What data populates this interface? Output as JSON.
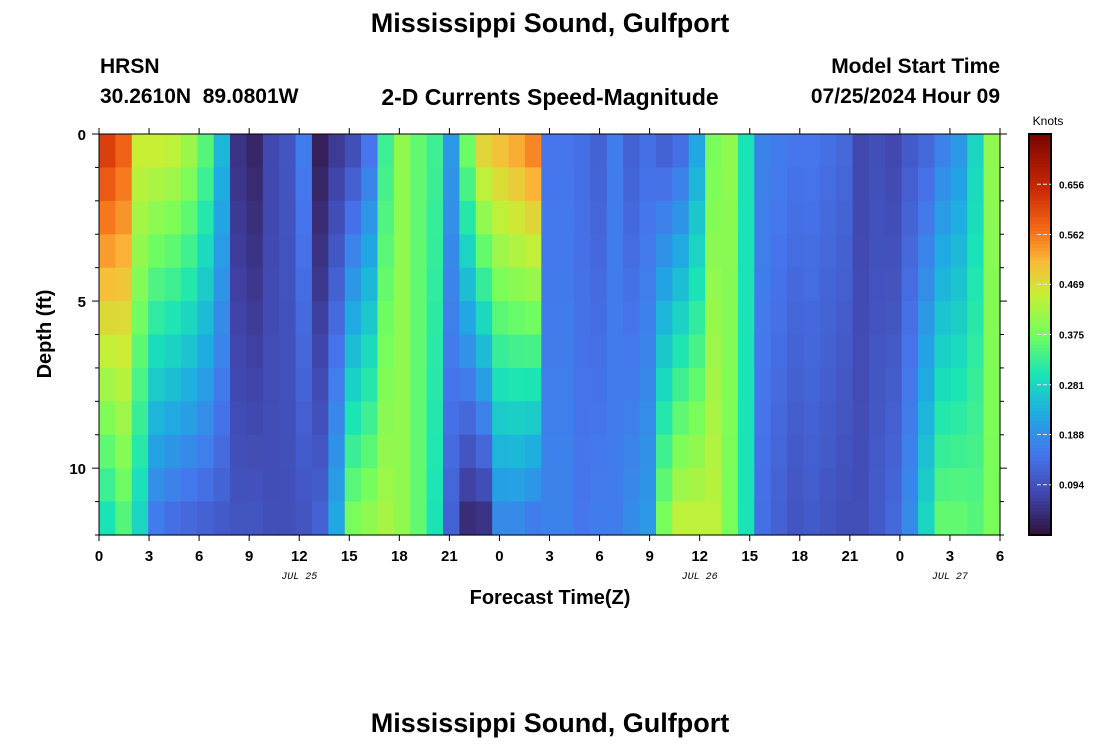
{
  "page": {
    "title_top": "Mississippi Sound, Gulfport",
    "title_bottom": "Mississippi Sound, Gulfport",
    "station_id": "HRSN",
    "station_coords": "30.2610N  89.0801W",
    "product_title": "2-D Currents Speed-Magnitude",
    "model_label": "Model Start Time",
    "model_start": "07/25/2024 Hour 09"
  },
  "chart_data": {
    "type": "heatmap",
    "title": "2-D Currents Speed-Magnitude",
    "xlabel": "Forecast Time(Z)",
    "ylabel": "Depth (ft)",
    "colorbar_label": "Knots",
    "y_range": [
      0,
      12
    ],
    "y_reversed": true,
    "y_ticks": [
      0,
      5,
      10
    ],
    "x_range": [
      "2024-07-25 00Z",
      "2024-07-27 06Z"
    ],
    "x_tick_labels": [
      "0",
      "3",
      "6",
      "9",
      "12",
      "15",
      "18",
      "21",
      "0",
      "3",
      "6",
      "9",
      "12",
      "15",
      "18",
      "21",
      "0",
      "3",
      "6"
    ],
    "date_labels": [
      {
        "label": "JUL 25",
        "at": "2024-07-25 12Z"
      },
      {
        "label": "JUL 26",
        "at": "2024-07-26 12Z"
      },
      {
        "label": "JUL 27",
        "at": "2024-07-27 03Z"
      }
    ],
    "colorbar_range": [
      0,
      0.75
    ],
    "colorbar_ticks": [
      "0.094",
      "0.188",
      "0.281",
      "0.375",
      "0.469",
      "0.562",
      "0.656"
    ],
    "hours": [
      0,
      1,
      2,
      3,
      4,
      5,
      6,
      7,
      8,
      9,
      10,
      11,
      12,
      13,
      14,
      15,
      16,
      17,
      18,
      19,
      20,
      21,
      22,
      23,
      24,
      25,
      26,
      27,
      28,
      29,
      30,
      31,
      32,
      33,
      34,
      35,
      36,
      37,
      38,
      39,
      40,
      41,
      42,
      43,
      44,
      45,
      46,
      47,
      48,
      49,
      50,
      51,
      52,
      53,
      54
    ],
    "depth_levels": [
      0.5,
      1.5,
      2.5,
      3.5,
      4.5,
      5.5,
      6.5,
      7.5,
      8.5,
      9.5,
      10.5,
      11.5
    ],
    "surface_speed": [
      0.62,
      0.58,
      0.45,
      0.45,
      0.44,
      0.41,
      0.35,
      0.24,
      0.05,
      0.03,
      0.08,
      0.1,
      0.16,
      0.02,
      0.06,
      0.09,
      0.15,
      0.33,
      0.4,
      0.36,
      0.33,
      0.2,
      0.37,
      0.48,
      0.5,
      0.52,
      0.55,
      0.15,
      0.15,
      0.14,
      0.12,
      0.16,
      0.12,
      0.14,
      0.12,
      0.14,
      0.22,
      0.38,
      0.4,
      0.3,
      0.17,
      0.16,
      0.15,
      0.15,
      0.14,
      0.13,
      0.08,
      0.09,
      0.08,
      0.11,
      0.13,
      0.17,
      0.2,
      0.28,
      0.4
    ],
    "bottom_speed": [
      0.3,
      0.35,
      0.28,
      0.16,
      0.14,
      0.13,
      0.12,
      0.11,
      0.1,
      0.1,
      0.09,
      0.09,
      0.1,
      0.12,
      0.22,
      0.38,
      0.4,
      0.42,
      0.4,
      0.36,
      0.3,
      0.12,
      0.04,
      0.05,
      0.18,
      0.18,
      0.16,
      0.17,
      0.17,
      0.15,
      0.16,
      0.16,
      0.18,
      0.2,
      0.38,
      0.44,
      0.44,
      0.44,
      0.38,
      0.3,
      0.14,
      0.12,
      0.1,
      0.11,
      0.1,
      0.09,
      0.09,
      0.11,
      0.13,
      0.18,
      0.28,
      0.36,
      0.36,
      0.35,
      0.38
    ]
  }
}
